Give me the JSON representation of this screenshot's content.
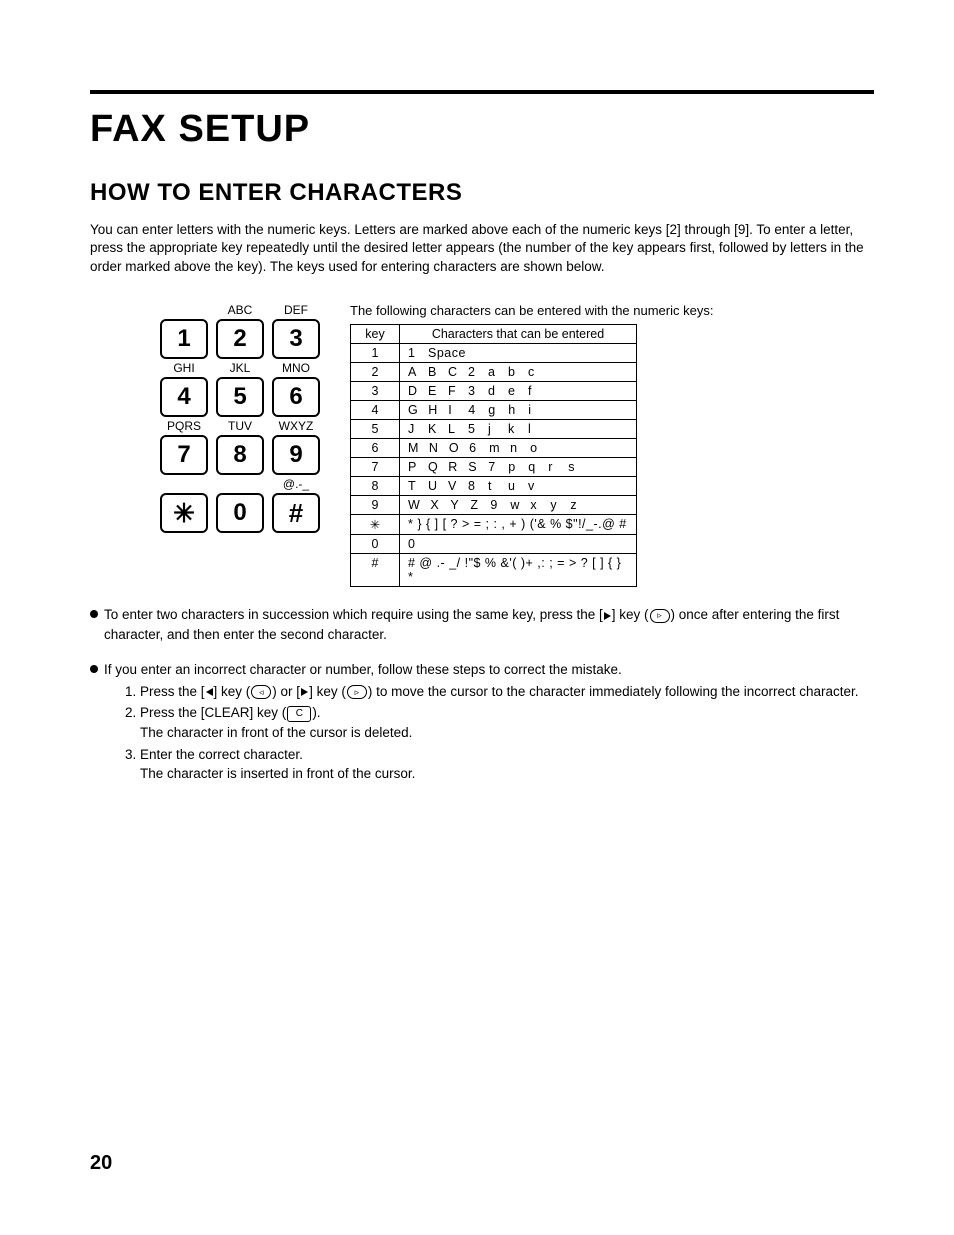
{
  "title": "FAX SETUP",
  "section": "HOW TO ENTER CHARACTERS",
  "intro": "You can enter letters with the numeric keys. Letters are marked above each of the numeric keys [2] through [9]. To enter a letter, press the appropriate key repeatedly until the desired letter appears (the number of the key appears first, followed by letters in the order marked above the key). The keys used for entering characters are shown below.",
  "keypad": {
    "rows": [
      {
        "labels": [
          "",
          "ABC",
          "DEF"
        ],
        "keys": [
          "1",
          "2",
          "3"
        ]
      },
      {
        "labels": [
          "GHI",
          "JKL",
          "MNO"
        ],
        "keys": [
          "4",
          "5",
          "6"
        ]
      },
      {
        "labels": [
          "PQRS",
          "TUV",
          "WXYZ"
        ],
        "keys": [
          "7",
          "8",
          "9"
        ]
      },
      {
        "labels": [
          "",
          "",
          "@.-_"
        ],
        "keys": [
          "✳",
          "0",
          "#"
        ]
      }
    ]
  },
  "table": {
    "caption": "The following characters can be entered with the numeric keys:",
    "head_key": "key",
    "head_chars": "Characters that can be entered",
    "rows": [
      {
        "k": "1",
        "chars": [
          "1",
          "Space"
        ]
      },
      {
        "k": "2",
        "chars": [
          "A",
          "B",
          "C",
          "2",
          "a",
          "b",
          "c"
        ]
      },
      {
        "k": "3",
        "chars": [
          "D",
          "E",
          "F",
          "3",
          "d",
          "e",
          "f"
        ]
      },
      {
        "k": "4",
        "chars": [
          "G",
          "H",
          "I",
          "4",
          "g",
          "h",
          "i"
        ]
      },
      {
        "k": "5",
        "chars": [
          "J",
          "K",
          "L",
          "5",
          "j",
          "k",
          "l"
        ]
      },
      {
        "k": "6",
        "chars": [
          "M",
          "N",
          "O",
          "6",
          "m",
          "n",
          "o"
        ]
      },
      {
        "k": "7",
        "chars": [
          "P",
          "Q",
          "R",
          "S",
          "7",
          "p",
          "q",
          "r",
          "s"
        ]
      },
      {
        "k": "8",
        "chars": [
          "T",
          "U",
          "V",
          "8",
          "t",
          "u",
          "v"
        ]
      },
      {
        "k": "9",
        "chars": [
          "W",
          "X",
          "Y",
          "Z",
          "9",
          "w",
          "x",
          "y",
          "z"
        ]
      },
      {
        "k": "✳",
        "chars": [
          "* } { ] [ ? > = ; : , + ) ('& % $\"!/_-.@ #"
        ]
      },
      {
        "k": "0",
        "chars": [
          "0"
        ]
      },
      {
        "k": "#",
        "chars": [
          "# @ .- _/ !\"$ % &'( )+ ,: ; = > ? [ ] { } *"
        ]
      }
    ]
  },
  "bullet1_a": "To enter two characters in succession which require using the same key, press the [",
  "bullet1_b": "] key (",
  "bullet1_c": ") once after entering the first character, and then enter the second character.",
  "bullet2": "If you enter an incorrect character or number, follow these steps to correct the mistake.",
  "step1_a": "Press the [",
  "step1_b": "] key (",
  "step1_c": ") or [",
  "step1_d": "] key (",
  "step1_e": ") to move the cursor to the character immediately following the incorrect character.",
  "step2_a": "Press the [CLEAR] key (",
  "step2_b": ").",
  "step2_line2": "The character in front of the cursor is deleted.",
  "step3_line1": "Enter the correct character.",
  "step3_line2": "The character is inserted in front of the cursor.",
  "clear_key_label": "C",
  "page_number": "20",
  "colors": {
    "text": "#000000",
    "background": "#ffffff",
    "rule": "#000000",
    "key_border": "#000000"
  },
  "typography": {
    "title_fontsize_pt": 28,
    "section_fontsize_pt": 18,
    "body_fontsize_pt": 10,
    "table_fontsize_pt": 9,
    "page_num_fontsize_pt": 15,
    "font_family": "Arial / Helvetica"
  }
}
